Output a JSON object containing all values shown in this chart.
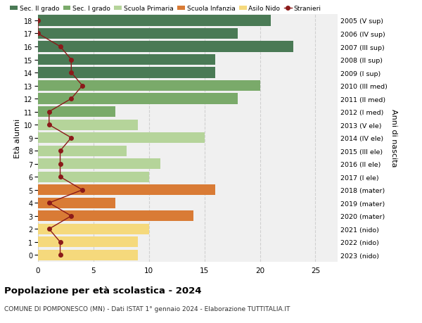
{
  "ages": [
    18,
    17,
    16,
    15,
    14,
    13,
    12,
    11,
    10,
    9,
    8,
    7,
    6,
    5,
    4,
    3,
    2,
    1,
    0
  ],
  "right_labels": [
    "2005 (V sup)",
    "2006 (IV sup)",
    "2007 (III sup)",
    "2008 (II sup)",
    "2009 (I sup)",
    "2010 (III med)",
    "2011 (II med)",
    "2012 (I med)",
    "2013 (V ele)",
    "2014 (IV ele)",
    "2015 (III ele)",
    "2016 (II ele)",
    "2017 (I ele)",
    "2018 (mater)",
    "2019 (mater)",
    "2020 (mater)",
    "2021 (nido)",
    "2022 (nido)",
    "2023 (nido)"
  ],
  "bar_values": [
    21,
    18,
    23,
    16,
    16,
    20,
    18,
    7,
    9,
    15,
    8,
    11,
    10,
    16,
    7,
    14,
    10,
    9,
    9
  ],
  "bar_colors": [
    "#4a7a55",
    "#4a7a55",
    "#4a7a55",
    "#4a7a55",
    "#4a7a55",
    "#7aaa6a",
    "#7aaa6a",
    "#7aaa6a",
    "#b5d49a",
    "#b5d49a",
    "#b5d49a",
    "#b5d49a",
    "#b5d49a",
    "#d97b35",
    "#d97b35",
    "#d97b35",
    "#f5d97c",
    "#f5d97c",
    "#f5d97c"
  ],
  "stranieri_values": [
    0,
    0,
    2,
    3,
    3,
    4,
    3,
    1,
    1,
    3,
    2,
    2,
    2,
    4,
    1,
    3,
    1,
    2,
    2
  ],
  "stranieri_color": "#8b1a1a",
  "legend_labels": [
    "Sec. II grado",
    "Sec. I grado",
    "Scuola Primaria",
    "Scuola Infanzia",
    "Asilo Nido",
    "Stranieri"
  ],
  "legend_colors": [
    "#4a7a55",
    "#7aaa6a",
    "#b5d49a",
    "#d97b35",
    "#f5d97c",
    "#8b1a1a"
  ],
  "title": "Popolazione per età scolastica - 2024",
  "subtitle": "COMUNE DI POMPONESCO (MN) - Dati ISTAT 1° gennaio 2024 - Elaborazione TUTTITALIA.IT",
  "ylabel_left": "Età alunni",
  "ylabel_right": "Anni di nascita",
  "xlim": [
    0,
    27
  ],
  "background_color": "#ffffff",
  "plot_bg_color": "#f0f0f0",
  "grid_color": "#d0d0d0"
}
